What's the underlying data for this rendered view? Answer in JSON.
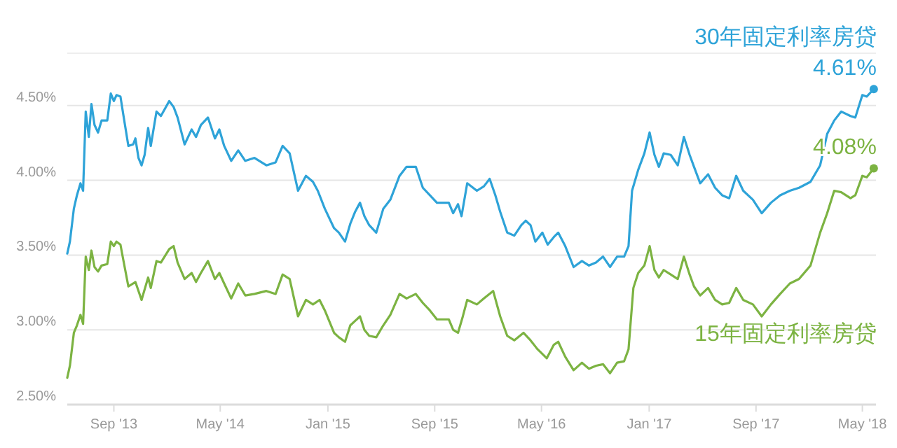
{
  "chart_data": {
    "type": "line",
    "xlim": [
      "2013-05-18",
      "2018-06-01"
    ],
    "xticks": [
      {
        "value": "2013-09-01",
        "label": "Sep '13"
      },
      {
        "value": "2014-05-01",
        "label": "May '14"
      },
      {
        "value": "2015-01-01",
        "label": "Jan '15"
      },
      {
        "value": "2015-09-01",
        "label": "Sep '15"
      },
      {
        "value": "2016-05-01",
        "label": "May '16"
      },
      {
        "value": "2017-01-01",
        "label": "Jan '17"
      },
      {
        "value": "2017-09-01",
        "label": "Sep '17"
      },
      {
        "value": "2018-05-01",
        "label": "May '18"
      }
    ],
    "ylim": [
      2.5,
      4.85
    ],
    "yticks": [
      {
        "value": 2.5,
        "label": "2.50%"
      },
      {
        "value": 3.0,
        "label": "3.00%"
      },
      {
        "value": 3.5,
        "label": "3.50%"
      },
      {
        "value": 4.0,
        "label": "4.00%"
      },
      {
        "value": 4.5,
        "label": "4.50%"
      }
    ],
    "grid": "y",
    "series": [
      {
        "name": "30年固定利率房贷",
        "color": "#2ea3d8",
        "x": [
          "2013-05-18",
          "2013-05-24",
          "2013-06-02",
          "2013-06-09",
          "2013-06-17",
          "2013-06-23",
          "2013-06-29",
          "2013-07-06",
          "2013-07-12",
          "2013-07-19",
          "2013-07-27",
          "2013-08-04",
          "2013-08-17",
          "2013-08-25",
          "2013-09-01",
          "2013-09-07",
          "2013-09-16",
          "2013-09-23",
          "2013-10-04",
          "2013-10-15",
          "2013-10-20",
          "2013-10-27",
          "2013-11-03",
          "2013-11-10",
          "2013-11-18",
          "2013-11-24",
          "2013-12-07",
          "2013-12-17",
          "2014-01-05",
          "2014-01-15",
          "2014-01-24",
          "2014-02-09",
          "2014-02-25",
          "2014-03-07",
          "2014-03-18",
          "2014-04-03",
          "2014-04-19",
          "2014-04-29",
          "2014-05-10",
          "2014-05-26",
          "2014-06-11",
          "2014-06-27",
          "2014-07-18",
          "2014-08-14",
          "2014-09-04",
          "2014-09-20",
          "2014-10-06",
          "2014-10-25",
          "2014-11-12",
          "2014-11-28",
          "2014-12-09",
          "2014-12-25",
          "2015-01-15",
          "2015-01-26",
          "2015-02-09",
          "2015-02-21",
          "2015-03-04",
          "2015-03-15",
          "2015-03-25",
          "2015-04-05",
          "2015-04-21",
          "2015-05-07",
          "2015-05-23",
          "2015-06-13",
          "2015-06-29",
          "2015-07-20",
          "2015-08-05",
          "2015-08-21",
          "2015-09-06",
          "2015-10-03",
          "2015-10-13",
          "2015-10-24",
          "2015-11-01",
          "2015-11-14",
          "2015-12-06",
          "2015-12-22",
          "2016-01-04",
          "2016-01-17",
          "2016-01-28",
          "2016-02-13",
          "2016-02-29",
          "2016-03-16",
          "2016-03-26",
          "2016-04-06",
          "2016-04-17",
          "2016-05-03",
          "2016-05-15",
          "2016-05-29",
          "2016-06-08",
          "2016-06-24",
          "2016-07-13",
          "2016-08-01",
          "2016-08-17",
          "2016-09-02",
          "2016-09-18",
          "2016-10-04",
          "2016-10-20",
          "2016-11-05",
          "2016-11-15",
          "2016-11-23",
          "2016-12-07",
          "2016-12-21",
          "2017-01-02",
          "2017-01-13",
          "2017-01-23",
          "2017-02-03",
          "2017-02-19",
          "2017-03-07",
          "2017-03-21",
          "2017-04-03",
          "2017-04-13",
          "2017-04-27",
          "2017-05-15",
          "2017-05-31",
          "2017-06-16",
          "2017-07-02",
          "2017-07-18",
          "2017-08-03",
          "2017-08-25",
          "2017-09-14",
          "2017-10-05",
          "2017-10-26",
          "2017-11-17",
          "2017-12-08",
          "2018-01-03",
          "2018-01-25",
          "2018-02-10",
          "2018-02-26",
          "2018-03-14",
          "2018-04-04",
          "2018-04-15",
          "2018-05-01",
          "2018-05-11",
          "2018-05-27"
        ],
        "values": [
          3.51,
          3.59,
          3.81,
          3.9,
          3.98,
          3.93,
          4.46,
          4.29,
          4.51,
          4.37,
          4.32,
          4.4,
          4.4,
          4.58,
          4.53,
          4.57,
          4.56,
          4.43,
          4.23,
          4.24,
          4.28,
          4.15,
          4.1,
          4.17,
          4.35,
          4.23,
          4.46,
          4.43,
          4.53,
          4.49,
          4.42,
          4.24,
          4.34,
          4.29,
          4.37,
          4.42,
          4.28,
          4.34,
          4.23,
          4.13,
          4.2,
          4.13,
          4.15,
          4.1,
          4.12,
          4.23,
          4.18,
          3.93,
          4.03,
          3.99,
          3.93,
          3.81,
          3.68,
          3.65,
          3.59,
          3.71,
          3.79,
          3.85,
          3.76,
          3.7,
          3.65,
          3.81,
          3.87,
          4.03,
          4.09,
          4.09,
          3.95,
          3.9,
          3.85,
          3.85,
          3.78,
          3.84,
          3.76,
          3.98,
          3.93,
          3.96,
          4.01,
          3.9,
          3.79,
          3.65,
          3.63,
          3.7,
          3.73,
          3.7,
          3.59,
          3.65,
          3.57,
          3.62,
          3.65,
          3.56,
          3.42,
          3.46,
          3.43,
          3.45,
          3.49,
          3.42,
          3.49,
          3.49,
          3.56,
          3.93,
          4.07,
          4.18,
          4.32,
          4.17,
          4.09,
          4.18,
          4.17,
          4.1,
          4.29,
          4.17,
          4.09,
          3.98,
          4.04,
          3.95,
          3.9,
          3.88,
          4.03,
          3.93,
          3.87,
          3.78,
          3.85,
          3.9,
          3.93,
          3.95,
          3.99,
          4.1,
          4.31,
          4.4,
          4.46,
          4.43,
          4.42,
          4.57,
          4.56,
          4.61
        ]
      },
      {
        "name": "15年固定利率房贷",
        "color": "#7cb342",
        "x": [
          "2013-05-18",
          "2013-05-24",
          "2013-06-02",
          "2013-06-09",
          "2013-06-17",
          "2013-06-23",
          "2013-06-29",
          "2013-07-06",
          "2013-07-12",
          "2013-07-19",
          "2013-07-27",
          "2013-08-04",
          "2013-08-17",
          "2013-08-25",
          "2013-09-01",
          "2013-09-07",
          "2013-09-16",
          "2013-09-23",
          "2013-10-04",
          "2013-10-15",
          "2013-10-20",
          "2013-11-03",
          "2013-11-18",
          "2013-11-24",
          "2013-12-07",
          "2013-12-17",
          "2014-01-05",
          "2014-01-15",
          "2014-01-24",
          "2014-02-09",
          "2014-02-25",
          "2014-03-07",
          "2014-03-18",
          "2014-04-03",
          "2014-04-19",
          "2014-04-29",
          "2014-05-10",
          "2014-05-26",
          "2014-06-11",
          "2014-06-27",
          "2014-07-18",
          "2014-08-14",
          "2014-09-04",
          "2014-09-20",
          "2014-10-06",
          "2014-10-25",
          "2014-11-12",
          "2014-11-28",
          "2014-12-13",
          "2014-12-25",
          "2015-01-15",
          "2015-01-26",
          "2015-02-09",
          "2015-02-21",
          "2015-03-04",
          "2015-03-15",
          "2015-03-25",
          "2015-04-05",
          "2015-04-21",
          "2015-05-07",
          "2015-05-23",
          "2015-06-13",
          "2015-06-29",
          "2015-07-20",
          "2015-08-05",
          "2015-08-21",
          "2015-09-06",
          "2015-10-03",
          "2015-10-13",
          "2015-10-24",
          "2015-11-04",
          "2015-11-14",
          "2015-12-06",
          "2015-12-22",
          "2016-01-12",
          "2016-01-28",
          "2016-02-13",
          "2016-02-29",
          "2016-03-21",
          "2016-04-06",
          "2016-04-22",
          "2016-05-13",
          "2016-05-29",
          "2016-06-08",
          "2016-06-24",
          "2016-07-13",
          "2016-08-01",
          "2016-08-17",
          "2016-09-02",
          "2016-09-18",
          "2016-10-04",
          "2016-10-20",
          "2016-11-05",
          "2016-11-15",
          "2016-11-26",
          "2016-12-07",
          "2016-12-21",
          "2017-01-02",
          "2017-01-13",
          "2017-01-23",
          "2017-02-03",
          "2017-02-19",
          "2017-03-07",
          "2017-03-21",
          "2017-04-03",
          "2017-04-13",
          "2017-04-27",
          "2017-05-15",
          "2017-05-31",
          "2017-06-16",
          "2017-07-02",
          "2017-07-18",
          "2017-08-03",
          "2017-08-25",
          "2017-09-14",
          "2017-10-05",
          "2017-10-26",
          "2017-11-17",
          "2017-12-08",
          "2018-01-03",
          "2018-01-25",
          "2018-02-10",
          "2018-02-26",
          "2018-03-14",
          "2018-04-04",
          "2018-04-15",
          "2018-05-01",
          "2018-05-11",
          "2018-05-27"
        ],
        "values": [
          2.68,
          2.76,
          2.98,
          3.03,
          3.1,
          3.04,
          3.49,
          3.4,
          3.53,
          3.42,
          3.39,
          3.43,
          3.44,
          3.59,
          3.56,
          3.59,
          3.57,
          3.46,
          3.29,
          3.31,
          3.32,
          3.2,
          3.35,
          3.28,
          3.46,
          3.45,
          3.54,
          3.56,
          3.45,
          3.34,
          3.38,
          3.32,
          3.38,
          3.46,
          3.34,
          3.38,
          3.31,
          3.21,
          3.31,
          3.23,
          3.24,
          3.26,
          3.24,
          3.37,
          3.34,
          3.09,
          3.2,
          3.17,
          3.2,
          3.13,
          2.98,
          2.95,
          2.92,
          3.03,
          3.06,
          3.09,
          3.0,
          2.96,
          2.95,
          3.03,
          3.1,
          3.24,
          3.21,
          3.24,
          3.18,
          3.13,
          3.07,
          3.07,
          3.0,
          2.98,
          3.09,
          3.2,
          3.17,
          3.21,
          3.26,
          3.09,
          2.96,
          2.93,
          2.98,
          2.93,
          2.87,
          2.81,
          2.9,
          2.92,
          2.82,
          2.73,
          2.78,
          2.74,
          2.76,
          2.77,
          2.71,
          2.78,
          2.79,
          2.87,
          3.28,
          3.38,
          3.43,
          3.56,
          3.4,
          3.35,
          3.4,
          3.37,
          3.34,
          3.49,
          3.37,
          3.29,
          3.23,
          3.28,
          3.2,
          3.17,
          3.18,
          3.28,
          3.2,
          3.17,
          3.09,
          3.17,
          3.24,
          3.31,
          3.34,
          3.43,
          3.65,
          3.78,
          3.93,
          3.92,
          3.88,
          3.9,
          4.03,
          4.02,
          4.08
        ]
      }
    ],
    "annotations": [
      {
        "text": "4.61%",
        "x": "2018-05-27",
        "y": 4.61
      },
      {
        "text": "4.08%",
        "x": "2018-05-27",
        "y": 4.08
      }
    ]
  }
}
